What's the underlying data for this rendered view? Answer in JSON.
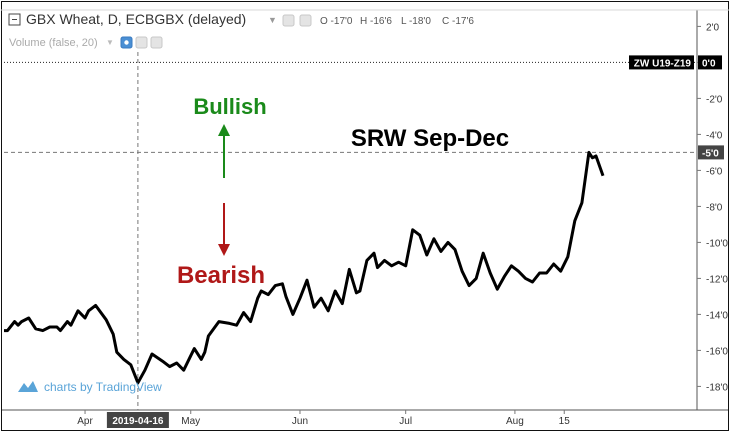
{
  "header": {
    "symbol_title": "GBX Wheat, D, ECBGBX (delayed)",
    "ohlc": [
      {
        "key": "O",
        "value": "-17'0"
      },
      {
        "key": "H",
        "value": "-16'6"
      },
      {
        "key": "L",
        "value": "-18'0"
      },
      {
        "key": "C",
        "value": "-17'6"
      }
    ],
    "volume_label": "Volume (false, 20)"
  },
  "annotations": {
    "bullish": "Bullish",
    "bearish": "Bearish",
    "chart_title": "SRW Sep-Dec"
  },
  "watermark": "charts by TradingView",
  "price_label": {
    "name": "ZW U19-Z19",
    "value": "0'0"
  },
  "crosshair_price": "-5'0",
  "crosshair_date": "2019-04-16",
  "colors": {
    "bullish": "#1a8a1a",
    "bearish": "#b01818",
    "line": "#000000",
    "badge_bg": "#000000",
    "watermark": "#5aa4d8"
  },
  "chart_data": {
    "type": "line",
    "title": "SRW Sep-Dec",
    "xlabel": "",
    "ylabel": "",
    "ylim": [
      -19.2,
      2.8
    ],
    "y_ticks": [
      "2'0",
      "0'0",
      "-2'0",
      "-4'0",
      "-6'0",
      "-8'0",
      "-10'0",
      "-12'0",
      "-14'0",
      "-16'0",
      "-18'0"
    ],
    "y_tick_values": [
      2,
      0,
      -2,
      -4,
      -6,
      -8,
      -10,
      -12,
      -14,
      -16,
      -18
    ],
    "x_ticks": [
      "Apr",
      "2019-04-16",
      "May",
      "Jun",
      "Jul",
      "Aug",
      "15"
    ],
    "x_tick_dates": [
      "2019-04-01",
      "2019-04-16",
      "2019-05-01",
      "2019-06-01",
      "2019-07-01",
      "2019-08-01",
      "2019-08-15"
    ],
    "x_range": [
      "2019-03-09",
      "2019-08-26"
    ],
    "series": [
      {
        "points": [
          [
            "2019-03-09",
            -14.9
          ],
          [
            "2019-03-10",
            -14.9
          ],
          [
            "2019-03-12",
            -14.4
          ],
          [
            "2019-03-13",
            -14.6
          ],
          [
            "2019-03-14",
            -14.4
          ],
          [
            "2019-03-16",
            -14.2
          ],
          [
            "2019-03-18",
            -14.8
          ],
          [
            "2019-03-20",
            -14.9
          ],
          [
            "2019-03-22",
            -14.7
          ],
          [
            "2019-03-24",
            -14.7
          ],
          [
            "2019-03-25",
            -14.9
          ],
          [
            "2019-03-27",
            -14.4
          ],
          [
            "2019-03-28",
            -14.6
          ],
          [
            "2019-03-30",
            -13.8
          ],
          [
            "2019-04-01",
            -14.2
          ],
          [
            "2019-04-02",
            -13.8
          ],
          [
            "2019-04-04",
            -13.5
          ],
          [
            "2019-04-07",
            -14.3
          ],
          [
            "2019-04-09",
            -15.1
          ],
          [
            "2019-04-10",
            -16.1
          ],
          [
            "2019-04-12",
            -16.5
          ],
          [
            "2019-04-14",
            -16.8
          ],
          [
            "2019-04-16",
            -17.8
          ],
          [
            "2019-04-18",
            -17.1
          ],
          [
            "2019-04-20",
            -16.2
          ],
          [
            "2019-04-23",
            -16.6
          ],
          [
            "2019-04-25",
            -16.9
          ],
          [
            "2019-04-27",
            -16.7
          ],
          [
            "2019-04-29",
            -17.1
          ],
          [
            "2019-05-01",
            -16.3
          ],
          [
            "2019-05-02",
            -15.9
          ],
          [
            "2019-05-04",
            -16.5
          ],
          [
            "2019-05-05",
            -16.1
          ],
          [
            "2019-05-06",
            -15.2
          ],
          [
            "2019-05-09",
            -14.4
          ],
          [
            "2019-05-12",
            -14.5
          ],
          [
            "2019-05-14",
            -14.6
          ],
          [
            "2019-05-16",
            -13.9
          ],
          [
            "2019-05-18",
            -14.4
          ],
          [
            "2019-05-20",
            -13.1
          ],
          [
            "2019-05-21",
            -12.7
          ],
          [
            "2019-05-23",
            -12.9
          ],
          [
            "2019-05-25",
            -12.4
          ],
          [
            "2019-05-27",
            -12.3
          ],
          [
            "2019-05-28",
            -13.0
          ],
          [
            "2019-05-30",
            -14.0
          ],
          [
            "2019-06-01",
            -13.1
          ],
          [
            "2019-06-03",
            -12.1
          ],
          [
            "2019-06-05",
            -13.6
          ],
          [
            "2019-06-07",
            -13.1
          ],
          [
            "2019-06-09",
            -13.8
          ],
          [
            "2019-06-11",
            -12.7
          ],
          [
            "2019-06-13",
            -13.4
          ],
          [
            "2019-06-15",
            -11.5
          ],
          [
            "2019-06-17",
            -12.8
          ],
          [
            "2019-06-18",
            -12.7
          ],
          [
            "2019-06-20",
            -11.0
          ],
          [
            "2019-06-22",
            -10.6
          ],
          [
            "2019-06-23",
            -11.4
          ],
          [
            "2019-06-25",
            -11.0
          ],
          [
            "2019-06-27",
            -11.3
          ],
          [
            "2019-06-29",
            -11.1
          ],
          [
            "2019-07-01",
            -11.3
          ],
          [
            "2019-07-03",
            -9.3
          ],
          [
            "2019-07-05",
            -9.6
          ],
          [
            "2019-07-07",
            -10.7
          ],
          [
            "2019-07-09",
            -9.8
          ],
          [
            "2019-07-11",
            -10.5
          ],
          [
            "2019-07-13",
            -10.0
          ],
          [
            "2019-07-15",
            -10.4
          ],
          [
            "2019-07-17",
            -11.6
          ],
          [
            "2019-07-19",
            -12.4
          ],
          [
            "2019-07-21",
            -12.0
          ],
          [
            "2019-07-23",
            -10.6
          ],
          [
            "2019-07-25",
            -11.7
          ],
          [
            "2019-07-27",
            -12.6
          ],
          [
            "2019-07-29",
            -11.9
          ],
          [
            "2019-07-31",
            -11.3
          ],
          [
            "2019-08-02",
            -11.6
          ],
          [
            "2019-08-04",
            -12.0
          ],
          [
            "2019-08-06",
            -12.2
          ],
          [
            "2019-08-08",
            -11.7
          ],
          [
            "2019-08-10",
            -11.7
          ],
          [
            "2019-08-12",
            -11.2
          ],
          [
            "2019-08-14",
            -11.6
          ],
          [
            "2019-08-16",
            -10.8
          ],
          [
            "2019-08-18",
            -8.8
          ],
          [
            "2019-08-20",
            -7.8
          ],
          [
            "2019-08-22",
            -5.0
          ],
          [
            "2019-08-23",
            -5.3
          ],
          [
            "2019-08-24",
            -5.2
          ],
          [
            "2019-08-26",
            -6.3
          ]
        ]
      }
    ]
  }
}
